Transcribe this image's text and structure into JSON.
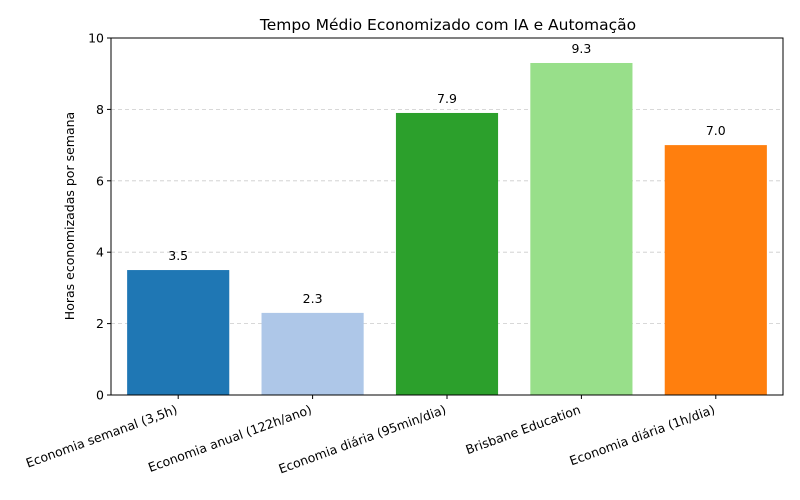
{
  "chart_data": {
    "type": "bar",
    "title": "Tempo Médio Economizado com IA e Automação",
    "y_label": "Horas economizadas por semana",
    "categories": [
      "Economia semanal (3,5h)",
      "Economia anual (122h/ano)",
      "Economia diária (95min/dia)",
      "Brisbane Education",
      "Economia diária (1h/dia)"
    ],
    "values": [
      3.5,
      2.3,
      7.9,
      9.3,
      7.0
    ],
    "value_labels": [
      "3.5",
      "2.3",
      "7.9",
      "9.3",
      "7.0"
    ],
    "colors": [
      "#1f77b4",
      "#aec7e8",
      "#2ca02c",
      "#98df8a",
      "#ff7f0e"
    ],
    "ylim": [
      0,
      10
    ],
    "yticks": [
      0,
      2,
      4,
      6,
      8,
      10
    ],
    "grid": true
  }
}
